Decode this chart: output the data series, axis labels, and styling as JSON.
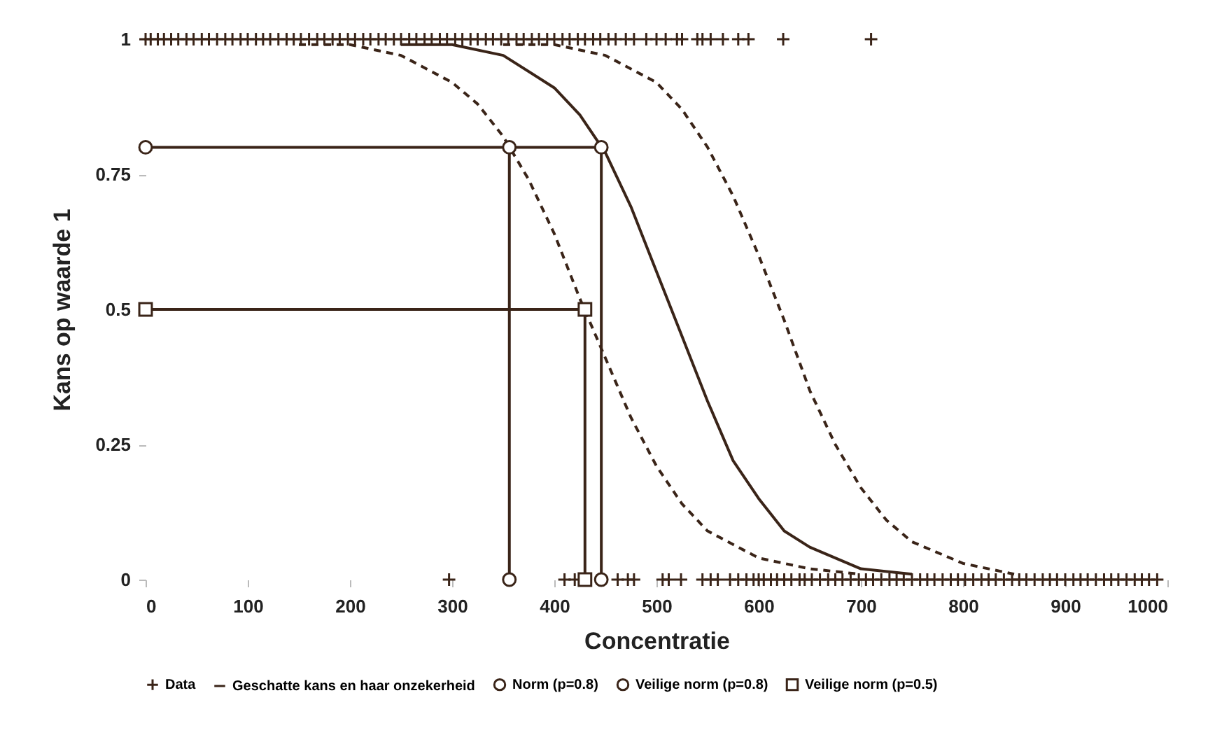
{
  "chart_data": {
    "type": "line",
    "xlabel": "Concentratie",
    "ylabel": "Kans op waarde 1",
    "xlim": [
      0,
      1000
    ],
    "ylim": [
      0,
      1
    ],
    "xticks": [
      0,
      100,
      200,
      300,
      400,
      500,
      600,
      700,
      800,
      900,
      1000
    ],
    "yticks": [
      0,
      0.25,
      0.5,
      0.75,
      1
    ],
    "legend": "bottom",
    "series": [
      {
        "name": "Data",
        "type": "scatter",
        "marker": "cross",
        "color": "#3a2418",
        "x": [
          0,
          5,
          12,
          18,
          25,
          32,
          40,
          47,
          55,
          62,
          70,
          78,
          85,
          93,
          100,
          108,
          115,
          122,
          130,
          138,
          145,
          152,
          160,
          168,
          175,
          183,
          190,
          198,
          205,
          213,
          220,
          228,
          235,
          243,
          250,
          258,
          265,
          273,
          280,
          288,
          295,
          303,
          310,
          318,
          325,
          333,
          340,
          348,
          355,
          363,
          370,
          378,
          385,
          393,
          400,
          408,
          415,
          423,
          430,
          438,
          445,
          453,
          460,
          470,
          478,
          490,
          500,
          509,
          520,
          525,
          540,
          545,
          553,
          565,
          580,
          590,
          624,
          710,
          297,
          410,
          420,
          462,
          472,
          478,
          506,
          512,
          524,
          545,
          553,
          560,
          572,
          580,
          588,
          595,
          600,
          605,
          612,
          618,
          625,
          632,
          640,
          645,
          652,
          660,
          668,
          675,
          682,
          690,
          698,
          705,
          712,
          720,
          728,
          735,
          742,
          750,
          758,
          765,
          772,
          780,
          788,
          795,
          802,
          810,
          818,
          825,
          832,
          840,
          848,
          855,
          862,
          870,
          878,
          885,
          892,
          900,
          908,
          915,
          922,
          930,
          938,
          945,
          952,
          960,
          968,
          975,
          982,
          990
        ],
        "values": [
          1,
          1,
          1,
          1,
          1,
          1,
          1,
          1,
          1,
          1,
          1,
          1,
          1,
          1,
          1,
          1,
          1,
          1,
          1,
          1,
          1,
          1,
          1,
          1,
          1,
          1,
          1,
          1,
          1,
          1,
          1,
          1,
          1,
          1,
          1,
          1,
          1,
          1,
          1,
          1,
          1,
          1,
          1,
          1,
          1,
          1,
          1,
          1,
          1,
          1,
          1,
          1,
          1,
          1,
          1,
          1,
          1,
          1,
          1,
          1,
          1,
          1,
          1,
          1,
          1,
          1,
          1,
          1,
          1,
          1,
          1,
          1,
          1,
          1,
          1,
          1,
          1,
          1,
          0,
          0,
          0,
          0,
          0,
          0,
          0,
          0,
          0,
          0,
          0,
          0,
          0,
          0,
          0,
          0,
          0,
          0,
          0,
          0,
          0,
          0,
          0,
          0,
          0,
          0,
          0,
          0,
          0,
          0,
          0,
          0,
          0,
          0,
          0,
          0,
          0,
          0,
          0,
          0,
          0,
          0,
          0,
          0,
          0,
          0,
          0,
          0,
          0,
          0,
          0,
          0,
          0,
          0,
          0,
          0,
          0,
          0,
          0,
          0,
          0,
          0,
          0,
          0,
          0,
          0,
          0,
          0,
          0,
          0
        ]
      },
      {
        "name": "Geschatte kans en haar onzekerheid",
        "type": "line",
        "line_style": "solid",
        "color": "#3a2418",
        "x": [
          250,
          300,
          350,
          400,
          425,
          450,
          475,
          500,
          525,
          550,
          575,
          600,
          625,
          650,
          675,
          700,
          750
        ],
        "values": [
          0.99,
          0.99,
          0.97,
          0.91,
          0.86,
          0.79,
          0.69,
          0.57,
          0.45,
          0.33,
          0.22,
          0.15,
          0.09,
          0.06,
          0.04,
          0.02,
          0.01
        ]
      },
      {
        "type": "line",
        "line_style": "dashed",
        "color": "#3a2418",
        "x": [
          150,
          200,
          250,
          300,
          325,
          350,
          375,
          400,
          425,
          450,
          475,
          500,
          525,
          550,
          600,
          650,
          700
        ],
        "values": [
          0.99,
          0.99,
          0.97,
          0.92,
          0.88,
          0.82,
          0.74,
          0.64,
          0.52,
          0.41,
          0.3,
          0.21,
          0.14,
          0.09,
          0.04,
          0.02,
          0.01
        ]
      },
      {
        "type": "line",
        "line_style": "dashed",
        "color": "#3a2418",
        "x": [
          350,
          400,
          450,
          500,
          525,
          550,
          575,
          600,
          625,
          650,
          675,
          700,
          725,
          750,
          800,
          850
        ],
        "values": [
          0.99,
          0.99,
          0.97,
          0.92,
          0.87,
          0.8,
          0.71,
          0.6,
          0.48,
          0.35,
          0.25,
          0.17,
          0.11,
          0.07,
          0.03,
          0.01
        ]
      },
      {
        "name": "Norm (p=0.8)",
        "type": "line",
        "line_style": "solid",
        "marker": "circle",
        "color": "#3a2418",
        "x": [
          0,
          446,
          446
        ],
        "values": [
          0.8,
          0.8,
          0
        ]
      },
      {
        "name": "Veilige norm (p=0.8)",
        "type": "line",
        "line_style": "solid",
        "marker": "circle",
        "color": "#3a2418",
        "x": [
          356,
          356
        ],
        "values": [
          0.8,
          0
        ]
      },
      {
        "name": "Veilige norm (p=0.5)",
        "type": "line",
        "line_style": "solid",
        "marker": "square",
        "color": "#3a2418",
        "x": [
          0,
          430,
          430
        ],
        "values": [
          0.5,
          0.5,
          0
        ]
      }
    ]
  }
}
